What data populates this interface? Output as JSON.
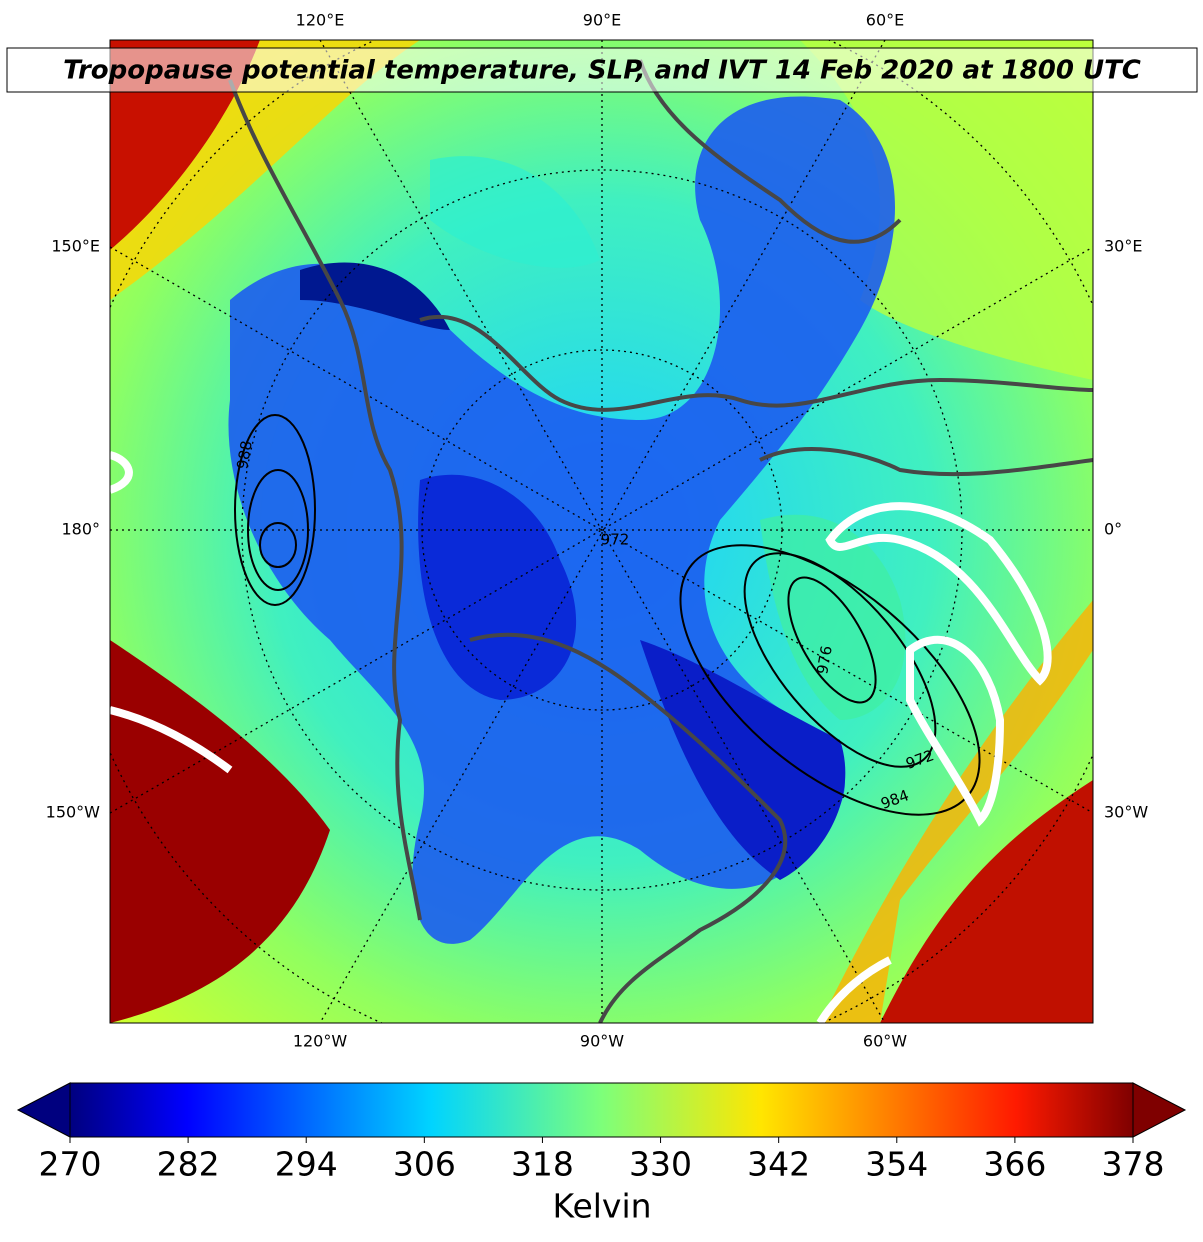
{
  "title": "Tropopause potential temperature, SLP, and IVT 14 Feb 2020 at 1800 UTC",
  "map": {
    "top_labels": [
      "120°E",
      "90°E",
      "60°E"
    ],
    "bottom_labels": [
      "120°W",
      "90°W",
      "60°W"
    ],
    "left_labels": [
      "150°E",
      "180°",
      "150°W"
    ],
    "right_labels": [
      "30°E",
      "0°",
      "30°W"
    ],
    "contour_labels": [
      "988",
      "972",
      "976",
      "972",
      "984"
    ]
  },
  "colorbar": {
    "range": [
      270,
      378
    ],
    "ticks": [
      270,
      282,
      294,
      306,
      318,
      330,
      342,
      354,
      366,
      378
    ],
    "label": "Kelvin"
  }
}
